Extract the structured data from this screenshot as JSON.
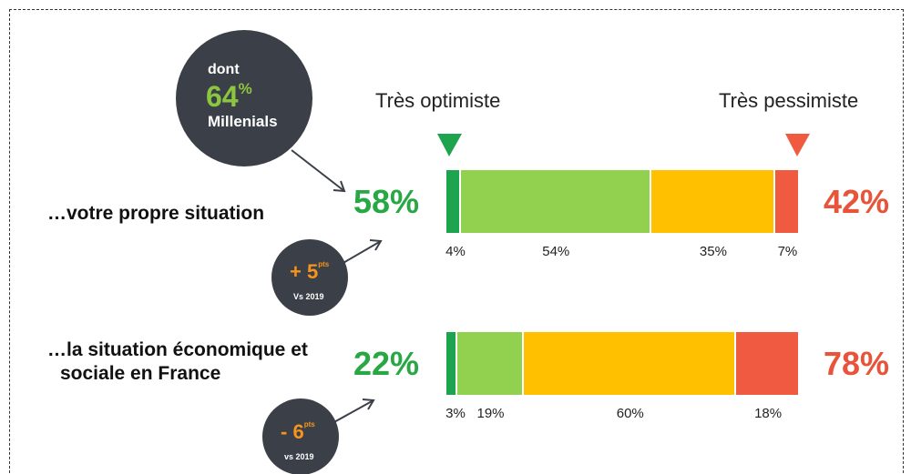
{
  "chart_data": {
    "type": "stacked-bar",
    "orientation": "horizontal",
    "end_labels": [
      "Très optimiste",
      "Très pessimiste"
    ],
    "categories": [
      "…votre propre situation",
      "…la situation économique et sociale en France"
    ],
    "xlim": [
      0,
      100
    ],
    "series": [
      {
        "color": "#1ea34f",
        "values": [
          4,
          3
        ],
        "value_labels": [
          "4%",
          "3%"
        ]
      },
      {
        "color": "#92d050",
        "values": [
          54,
          19
        ],
        "value_labels": [
          "54%",
          "19%"
        ]
      },
      {
        "color": "#ffc000",
        "values": [
          35,
          60
        ],
        "value_labels": [
          "35%",
          "60%"
        ]
      },
      {
        "color": "#f05a40",
        "values": [
          7,
          18
        ],
        "value_labels": [
          "7%",
          "18%"
        ]
      }
    ],
    "optimistic": {
      "values": [
        58,
        22
      ],
      "value_labels": [
        "58%",
        "22%"
      ],
      "color": "#27a844"
    },
    "pessimistic": {
      "values": [
        42,
        78
      ],
      "value_labels": [
        "42%",
        "78%"
      ],
      "color": "#e8533a"
    },
    "millenials_bubble": {
      "prefix": "dont",
      "value": 64,
      "unit": "%",
      "label": "Millenials"
    },
    "change_bubbles": [
      {
        "value": {
          "value": 5,
          "label": "+ 5"
        },
        "unit": "pts",
        "label": "Vs 2019"
      },
      {
        "value": {
          "value": -6,
          "label": "- 6"
        },
        "unit": "pts",
        "label": "vs 2019"
      }
    ]
  }
}
